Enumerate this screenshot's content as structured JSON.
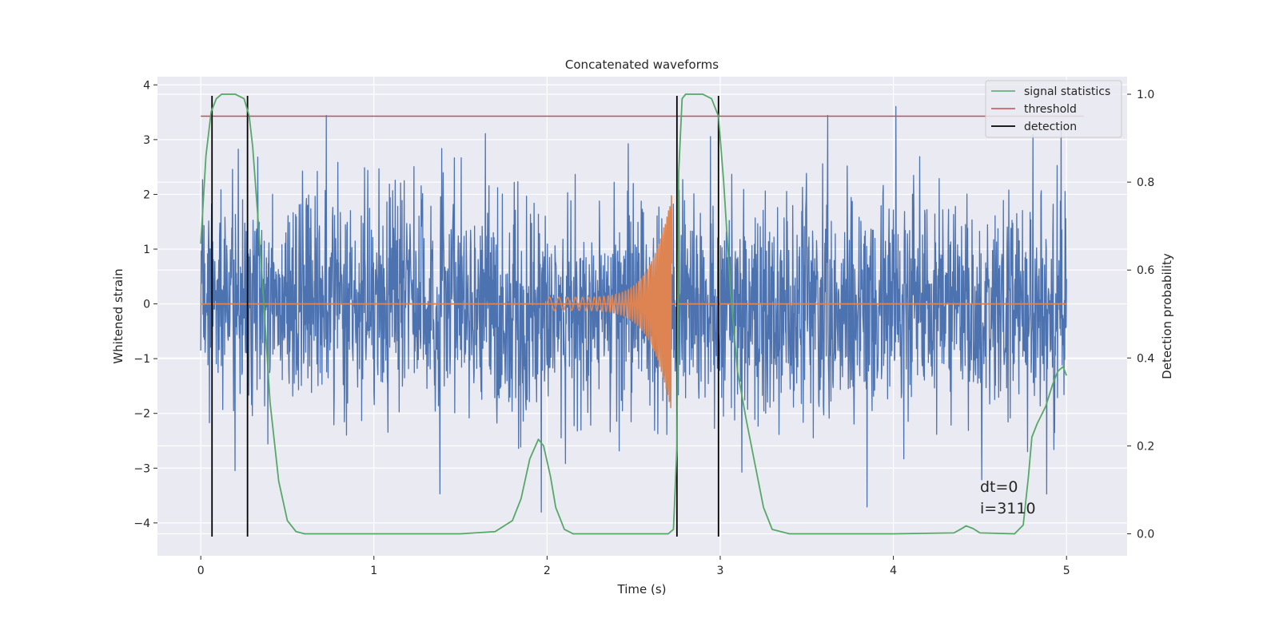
{
  "chart_data": {
    "type": "line",
    "title": "Concatenated waveforms",
    "xlabel": "Time (s)",
    "ylabel": "Whitened strain",
    "ylabel_right": "Detection probability",
    "xlim": [
      -0.25,
      5.35
    ],
    "ylim": [
      -4.6,
      4.15
    ],
    "ylim_right": [
      -0.05,
      1.04
    ],
    "x_ticks": [
      0,
      1,
      2,
      3,
      4,
      5
    ],
    "y_ticks": [
      -4,
      -3,
      -2,
      -1,
      0,
      1,
      2,
      3,
      4
    ],
    "y_tick_labels": [
      "−4",
      "−3",
      "−2",
      "−1",
      "0",
      "1",
      "2",
      "3",
      "4"
    ],
    "y_right_ticks": [
      0.0,
      0.2,
      0.4,
      0.6,
      0.8,
      1.0
    ],
    "y_right_tick_labels": [
      "0.0",
      "0.2",
      "0.4",
      "0.6",
      "0.8",
      "1.0"
    ],
    "grid": true,
    "legend_position": "top-right",
    "colors": {
      "background": "#eaeaf2",
      "grid": "#ffffff",
      "strain": "#4c72b0",
      "injection": "#dd8452",
      "signal_statistics": "#55a868",
      "threshold": "#c44e52",
      "detection": "#000000"
    },
    "series": [
      {
        "name": "signal statistics",
        "axis": "right",
        "x": [
          0.0,
          0.03,
          0.06,
          0.09,
          0.12,
          0.15,
          0.2,
          0.25,
          0.28,
          0.3,
          0.33,
          0.36,
          0.4,
          0.45,
          0.5,
          0.55,
          0.6,
          1.0,
          1.5,
          1.7,
          1.8,
          1.85,
          1.9,
          1.95,
          1.98,
          2.02,
          2.05,
          2.1,
          2.15,
          2.2,
          2.5,
          2.7,
          2.73,
          2.75,
          2.76,
          2.78,
          2.8,
          2.9,
          2.95,
          2.99,
          3.02,
          3.06,
          3.1,
          3.15,
          3.2,
          3.25,
          3.3,
          3.4,
          4.0,
          4.35,
          4.4,
          4.42,
          4.46,
          4.5,
          4.7,
          4.75,
          4.78,
          4.8,
          4.83,
          4.88,
          4.92,
          4.95,
          4.98,
          5.0
        ],
        "y": [
          0.66,
          0.86,
          0.96,
          0.99,
          1.0,
          1.0,
          1.0,
          0.99,
          0.95,
          0.88,
          0.72,
          0.55,
          0.3,
          0.12,
          0.03,
          0.005,
          0.0,
          0.0,
          0.0,
          0.005,
          0.03,
          0.08,
          0.17,
          0.215,
          0.2,
          0.13,
          0.06,
          0.01,
          0.0,
          0.0,
          0.0,
          0.0,
          0.01,
          0.2,
          0.82,
          0.99,
          1.0,
          1.0,
          0.99,
          0.95,
          0.8,
          0.55,
          0.37,
          0.26,
          0.16,
          0.06,
          0.01,
          0.0,
          0.0,
          0.002,
          0.013,
          0.018,
          0.012,
          0.002,
          0.0,
          0.02,
          0.13,
          0.22,
          0.25,
          0.29,
          0.34,
          0.37,
          0.38,
          0.36
        ]
      },
      {
        "name": "threshold",
        "axis": "right",
        "x": [
          0.0,
          5.1
        ],
        "y": [
          0.95,
          0.95
        ]
      },
      {
        "name": "detection",
        "axis": "left",
        "vlines_x": [
          0.065,
          0.27,
          2.75,
          2.99
        ],
        "vline_ymin": -4.25,
        "vline_ymax": 3.8
      },
      {
        "axis": "left",
        "role": "whitened strain noise",
        "x_range": [
          0.0,
          5.0
        ],
        "typical_amplitude": 1.6,
        "peak_range": [
          -4.25,
          3.8
        ]
      },
      {
        "axis": "left",
        "role": "injected chirp",
        "x_range": [
          2.0,
          2.72
        ],
        "start_amplitude": 0.12,
        "end_amplitude": 2.0,
        "baseline": 0.0
      }
    ],
    "annotations": [
      "dt=0",
      "i=3110"
    ]
  }
}
